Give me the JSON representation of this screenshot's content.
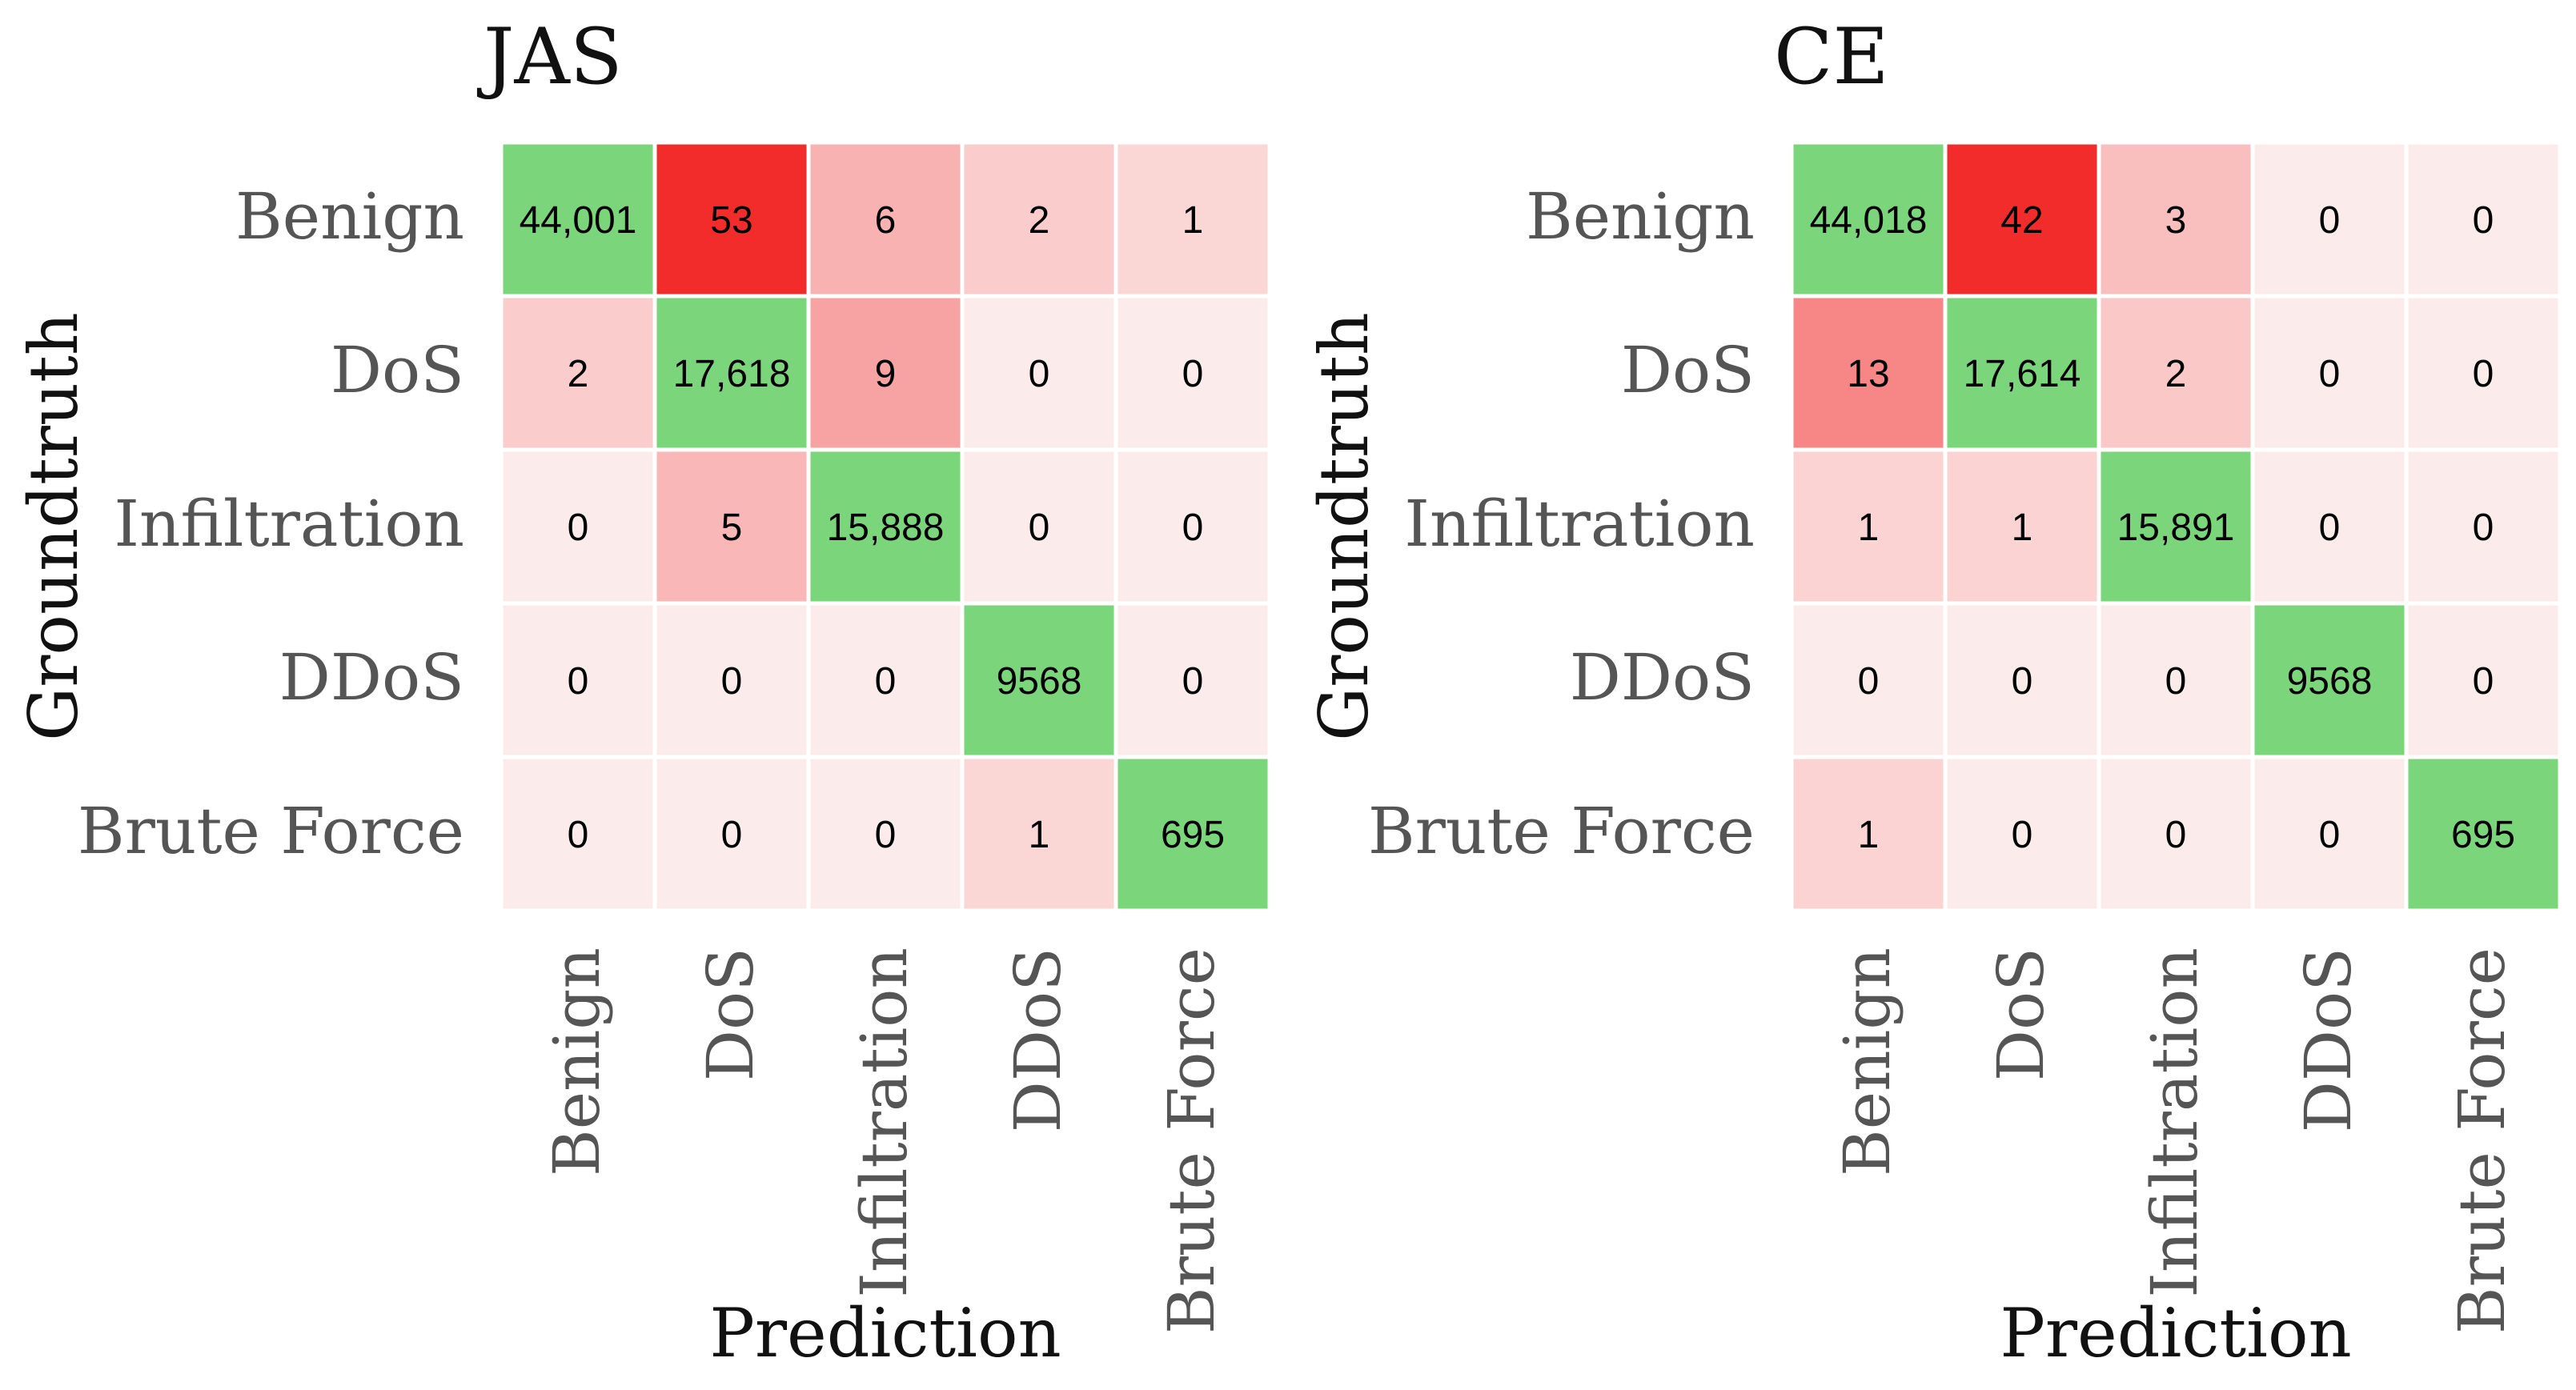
{
  "chart_data": [
    {
      "type": "heatmap",
      "title": "JAS",
      "xlabel": "Prediction",
      "ylabel": "Groundtruth",
      "row_labels": [
        "Benign",
        "DoS",
        "Infiltration",
        "DDoS",
        "Brute Force"
      ],
      "col_labels": [
        "Benign",
        "DoS",
        "Infiltration",
        "DDoS",
        "Brute Force"
      ],
      "values": [
        [
          44001,
          53,
          6,
          2,
          1
        ],
        [
          2,
          17618,
          9,
          0,
          0
        ],
        [
          0,
          5,
          15888,
          0,
          0
        ],
        [
          0,
          0,
          0,
          9568,
          0
        ],
        [
          0,
          0,
          0,
          1,
          695
        ]
      ],
      "display": [
        [
          "44,001",
          "53",
          "6",
          "2",
          "1"
        ],
        [
          "2",
          "17,618",
          "9",
          "0",
          "0"
        ],
        [
          "0",
          "5",
          "15,888",
          "0",
          "0"
        ],
        [
          "0",
          "0",
          "0",
          "9568",
          "0"
        ],
        [
          "0",
          "0",
          "0",
          "1",
          "695"
        ]
      ]
    },
    {
      "type": "heatmap",
      "title": "CE",
      "xlabel": "Prediction",
      "ylabel": "Groundtruth",
      "row_labels": [
        "Benign",
        "DoS",
        "Infiltration",
        "DDoS",
        "Brute Force"
      ],
      "col_labels": [
        "Benign",
        "DoS",
        "Infiltration",
        "DDoS",
        "Brute Force"
      ],
      "values": [
        [
          44018,
          42,
          3,
          0,
          0
        ],
        [
          13,
          17614,
          2,
          0,
          0
        ],
        [
          1,
          1,
          15891,
          0,
          0
        ],
        [
          0,
          0,
          0,
          9568,
          0
        ],
        [
          1,
          0,
          0,
          0,
          695
        ]
      ],
      "display": [
        [
          "44,018",
          "42",
          "3",
          "0",
          "0"
        ],
        [
          "13",
          "17,614",
          "2",
          "0",
          "0"
        ],
        [
          "1",
          "1",
          "15,891",
          "0",
          "0"
        ],
        [
          "0",
          "0",
          "0",
          "9568",
          "0"
        ],
        [
          "1",
          "0",
          "0",
          "0",
          "695"
        ]
      ]
    }
  ],
  "colors": {
    "diagonal": "#7bd67b",
    "off_min": "#fbeceb",
    "off_max": "#f22b2b",
    "cell_border": "#ffffff"
  }
}
